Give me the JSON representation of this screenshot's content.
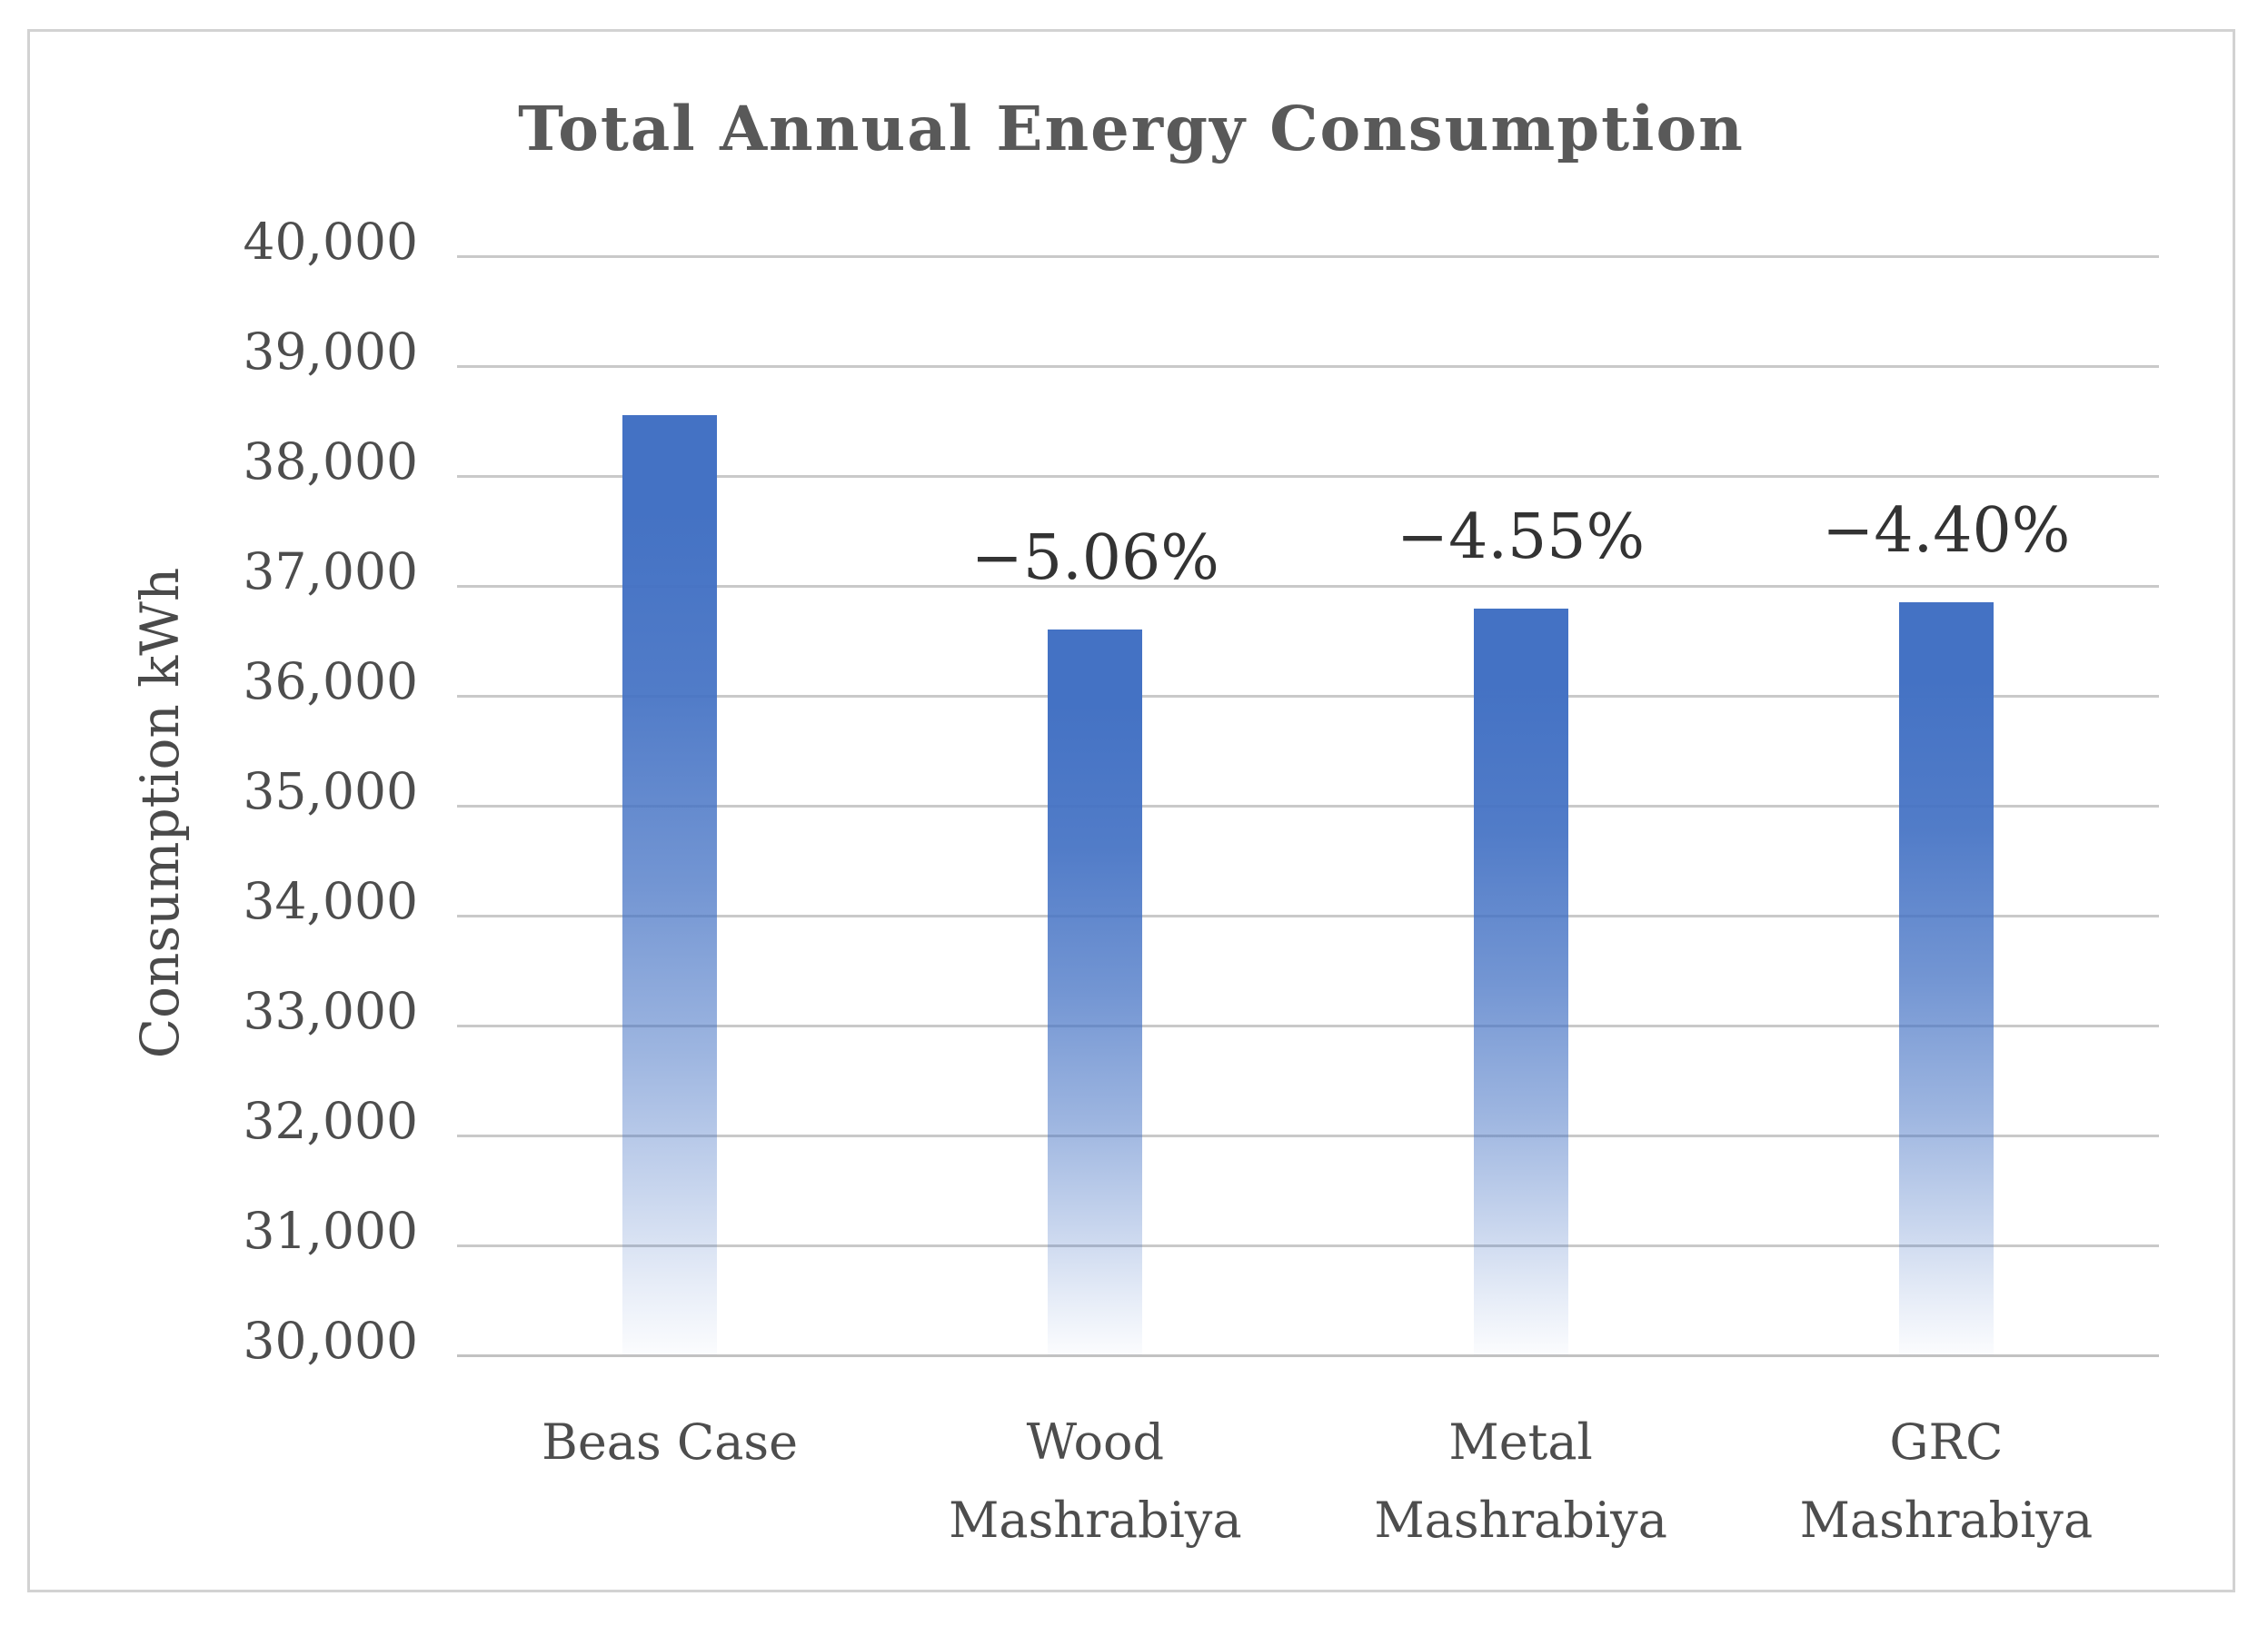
{
  "chart_data": {
    "type": "bar",
    "title": "Total Annual Energy Consumption",
    "ylabel": "Consumption kWh",
    "xlabel": "",
    "unit": "kWh",
    "ylim": [
      30000,
      40000
    ],
    "ytick_step": 1000,
    "grid": true,
    "legend": "none",
    "bar_color": "#4472C4",
    "bar_fade_to": "#FFFFFF",
    "gridline_color": "#C9C9C9",
    "categories": [
      "Beas Case",
      "Wood\nMashrabiya",
      "Metal\nMashrabiya",
      "GRC\nMashrabiya"
    ],
    "values": [
      38550,
      36600,
      36795,
      36855
    ],
    "bar_labels": [
      "",
      "−5.06%",
      "−4.55%",
      "−4.40%"
    ],
    "yticks": [
      {
        "value": 40000,
        "label": "40,000"
      },
      {
        "value": 39000,
        "label": "39,000"
      },
      {
        "value": 38000,
        "label": "38,000"
      },
      {
        "value": 37000,
        "label": "37,000"
      },
      {
        "value": 36000,
        "label": "36,000"
      },
      {
        "value": 35000,
        "label": "35,000"
      },
      {
        "value": 34000,
        "label": "34,000"
      },
      {
        "value": 33000,
        "label": "33,000"
      },
      {
        "value": 32000,
        "label": "32,000"
      },
      {
        "value": 31000,
        "label": "31,000"
      },
      {
        "value": 30000,
        "label": "30,000"
      }
    ]
  }
}
